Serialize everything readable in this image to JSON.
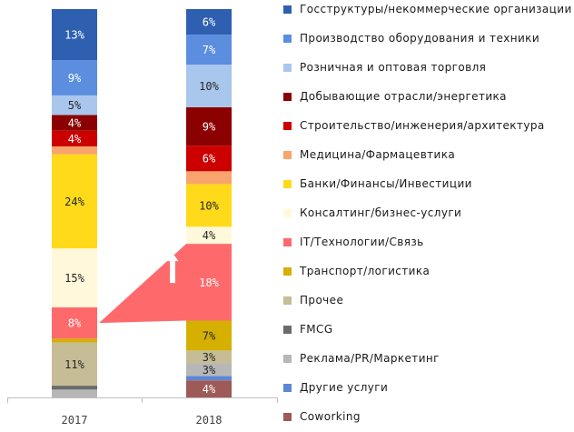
{
  "chart_data": {
    "type": "stacked-bar",
    "categories": [
      "2017",
      "2018"
    ],
    "series": [
      {
        "name": "Coworking",
        "color": "#9e5a56",
        "values": [
          0,
          4
        ]
      },
      {
        "name": "Другие услуги",
        "color": "#5d87d6",
        "values": [
          0,
          1
        ]
      },
      {
        "name": "Реклама/PR/Маркетинг",
        "color": "#b7b7b7",
        "values": [
          2,
          3
        ]
      },
      {
        "name": "FMCG",
        "color": "#6b6b6b",
        "values": [
          1,
          0
        ]
      },
      {
        "name": "Прочее",
        "color": "#c6bd96",
        "values": [
          11,
          3
        ]
      },
      {
        "name": "Транспорт/логистика",
        "color": "#d5b000",
        "values": [
          1,
          7
        ]
      },
      {
        "name": "IT/Технологии/Связь",
        "color": "#fe6a6c",
        "values": [
          8,
          18
        ]
      },
      {
        "name": "Консалтинг/бизнес-услуги",
        "color": "#fff8da",
        "values": [
          15,
          4
        ]
      },
      {
        "name": "Банки/Финансы/Инвестиции",
        "color": "#ffda1a",
        "values": [
          24,
          10
        ]
      },
      {
        "name": "Медицина/Фармацевтика",
        "color": "#f8a46c",
        "values": [
          2,
          3
        ]
      },
      {
        "name": "Строительство/инженерия/архитектура",
        "color": "#cc0000",
        "values": [
          4,
          6
        ]
      },
      {
        "name": "Добывающие отрасли/энергетика",
        "color": "#8b0000",
        "values": [
          4,
          9
        ]
      },
      {
        "name": "Розничная и оптовая торговля",
        "color": "#a9c6ec",
        "values": [
          5,
          10
        ]
      },
      {
        "name": "Производство оборудования и техники",
        "color": "#5b8ede",
        "values": [
          9,
          7
        ]
      },
      {
        "name": "Госструктуры/некоммерческие организации",
        "color": "#2e5fb0",
        "values": [
          13,
          6
        ]
      }
    ],
    "data_labels": [
      [
        "",
        "",
        "",
        "",
        "11%",
        "",
        "8%",
        "15%",
        "24%",
        "",
        "4%",
        "4%",
        "5%",
        "9%",
        "13%"
      ],
      [
        "4%",
        "",
        "3%",
        "",
        "3%",
        "7%",
        "18%",
        "4%",
        "10%",
        "",
        "6%",
        "9%",
        "10%",
        "7%",
        "6%"
      ]
    ],
    "legend": [
      {
        "label": "Госструктуры/некоммерческие организации",
        "color": "#2e5fb0"
      },
      {
        "label": "Производство оборудования и техники",
        "color": "#5b8ede"
      },
      {
        "label": "Розничная и оптовая торговля",
        "color": "#a9c6ec"
      },
      {
        "label": "Добывающие отрасли/энергетика",
        "color": "#8b0000"
      },
      {
        "label": "Строительство/инженерия/архитектура",
        "color": "#cc0000"
      },
      {
        "label": "Медицина/Фармацевтика",
        "color": "#f8a46c"
      },
      {
        "label": "Банки/Финансы/Инвестиции",
        "color": "#ffda1a"
      },
      {
        "label": "Консалтинг/бизнес-услуги",
        "color": "#fff8da"
      },
      {
        "label": "IT/Технологии/Связь",
        "color": "#fe6a6c"
      },
      {
        "label": "Транспорт/логистика",
        "color": "#d5b000"
      },
      {
        "label": "Прочее",
        "color": "#c6bd96"
      },
      {
        "label": "FMCG",
        "color": "#6b6b6b"
      },
      {
        "label": "Реклама/PR/Маркетинг",
        "color": "#b7b7b7"
      },
      {
        "label": "Другие услуги",
        "color": "#5d87d6"
      },
      {
        "label": "Coworking",
        "color": "#9e5a56"
      }
    ],
    "legend_position": "right",
    "highlight": {
      "series": "IT/Технологии/Связь",
      "from": "2017",
      "to": "2018",
      "arrow": "up"
    }
  }
}
